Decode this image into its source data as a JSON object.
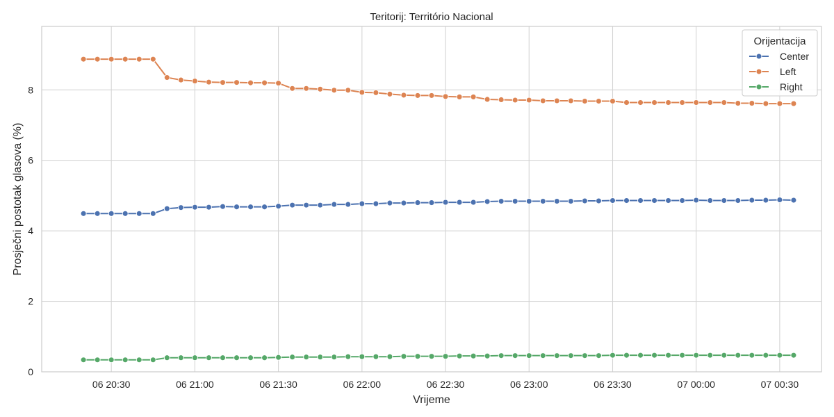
{
  "chart_data": {
    "type": "line",
    "title": "Teritorij: Território Nacional",
    "xlabel": "Vrijeme",
    "ylabel": "Prosječni postotak glasova (%)",
    "ylim": [
      0,
      9.8
    ],
    "yticks": [
      0,
      2,
      4,
      6,
      8
    ],
    "x_range": [
      "06 20:05",
      "07 00:45"
    ],
    "x_ticks": [
      {
        "time": "06 20:30",
        "label": "06 20:30"
      },
      {
        "time": "06 21:00",
        "label": "06 21:00"
      },
      {
        "time": "06 21:30",
        "label": "06 21:30"
      },
      {
        "time": "06 22:00",
        "label": "06 22:00"
      },
      {
        "time": "06 22:30",
        "label": "06 22:30"
      },
      {
        "time": "06 23:00",
        "label": "06 23:00"
      },
      {
        "time": "06 23:30",
        "label": "06 23:30"
      },
      {
        "time": "07 00:00",
        "label": "07 00:00"
      },
      {
        "time": "07 00:30",
        "label": "07 00:30"
      }
    ],
    "grid": true,
    "legend": {
      "title": "Orijentacija",
      "position": "top-right"
    },
    "x": [
      "06 20:20",
      "06 20:25",
      "06 20:30",
      "06 20:35",
      "06 20:40",
      "06 20:45",
      "06 20:50",
      "06 20:55",
      "06 21:00",
      "06 21:05",
      "06 21:10",
      "06 21:15",
      "06 21:20",
      "06 21:25",
      "06 21:30",
      "06 21:35",
      "06 21:40",
      "06 21:45",
      "06 21:50",
      "06 21:55",
      "06 22:00",
      "06 22:05",
      "06 22:10",
      "06 22:15",
      "06 22:20",
      "06 22:25",
      "06 22:30",
      "06 22:35",
      "06 22:40",
      "06 22:45",
      "06 22:50",
      "06 22:55",
      "06 23:00",
      "06 23:05",
      "06 23:10",
      "06 23:15",
      "06 23:20",
      "06 23:25",
      "06 23:30",
      "06 23:35",
      "06 23:40",
      "06 23:45",
      "06 23:50",
      "06 23:55",
      "07 00:00",
      "07 00:05",
      "07 00:10",
      "07 00:15",
      "07 00:20",
      "07 00:25",
      "07 00:30",
      "07 00:35"
    ],
    "series": [
      {
        "name": "Center",
        "color": "#4c72b0",
        "values": [
          4.49,
          4.49,
          4.49,
          4.49,
          4.49,
          4.49,
          4.63,
          4.66,
          4.67,
          4.67,
          4.69,
          4.68,
          4.68,
          4.68,
          4.7,
          4.73,
          4.73,
          4.73,
          4.75,
          4.75,
          4.77,
          4.77,
          4.79,
          4.79,
          4.8,
          4.8,
          4.81,
          4.81,
          4.81,
          4.83,
          4.84,
          4.84,
          4.84,
          4.84,
          4.84,
          4.84,
          4.85,
          4.85,
          4.86,
          4.86,
          4.86,
          4.86,
          4.86,
          4.86,
          4.87,
          4.86,
          4.86,
          4.86,
          4.87,
          4.87,
          4.88,
          4.87
        ]
      },
      {
        "name": "Left",
        "color": "#dd8452",
        "values": [
          8.87,
          8.87,
          8.87,
          8.87,
          8.87,
          8.87,
          8.35,
          8.28,
          8.25,
          8.22,
          8.21,
          8.21,
          8.2,
          8.2,
          8.19,
          8.04,
          8.04,
          8.02,
          7.99,
          7.99,
          7.93,
          7.92,
          7.88,
          7.85,
          7.84,
          7.84,
          7.81,
          7.8,
          7.8,
          7.73,
          7.72,
          7.71,
          7.71,
          7.69,
          7.69,
          7.69,
          7.68,
          7.68,
          7.68,
          7.64,
          7.64,
          7.64,
          7.64,
          7.64,
          7.64,
          7.64,
          7.64,
          7.62,
          7.62,
          7.61,
          7.61,
          7.61
        ]
      },
      {
        "name": "Right",
        "color": "#55a868",
        "values": [
          0.34,
          0.34,
          0.34,
          0.34,
          0.34,
          0.34,
          0.4,
          0.4,
          0.4,
          0.4,
          0.4,
          0.4,
          0.4,
          0.4,
          0.41,
          0.42,
          0.42,
          0.42,
          0.42,
          0.43,
          0.43,
          0.43,
          0.43,
          0.44,
          0.44,
          0.44,
          0.44,
          0.45,
          0.45,
          0.45,
          0.46,
          0.46,
          0.46,
          0.46,
          0.46,
          0.46,
          0.46,
          0.46,
          0.47,
          0.47,
          0.47,
          0.47,
          0.47,
          0.47,
          0.47,
          0.47,
          0.47,
          0.47,
          0.47,
          0.47,
          0.47,
          0.47
        ]
      }
    ]
  }
}
